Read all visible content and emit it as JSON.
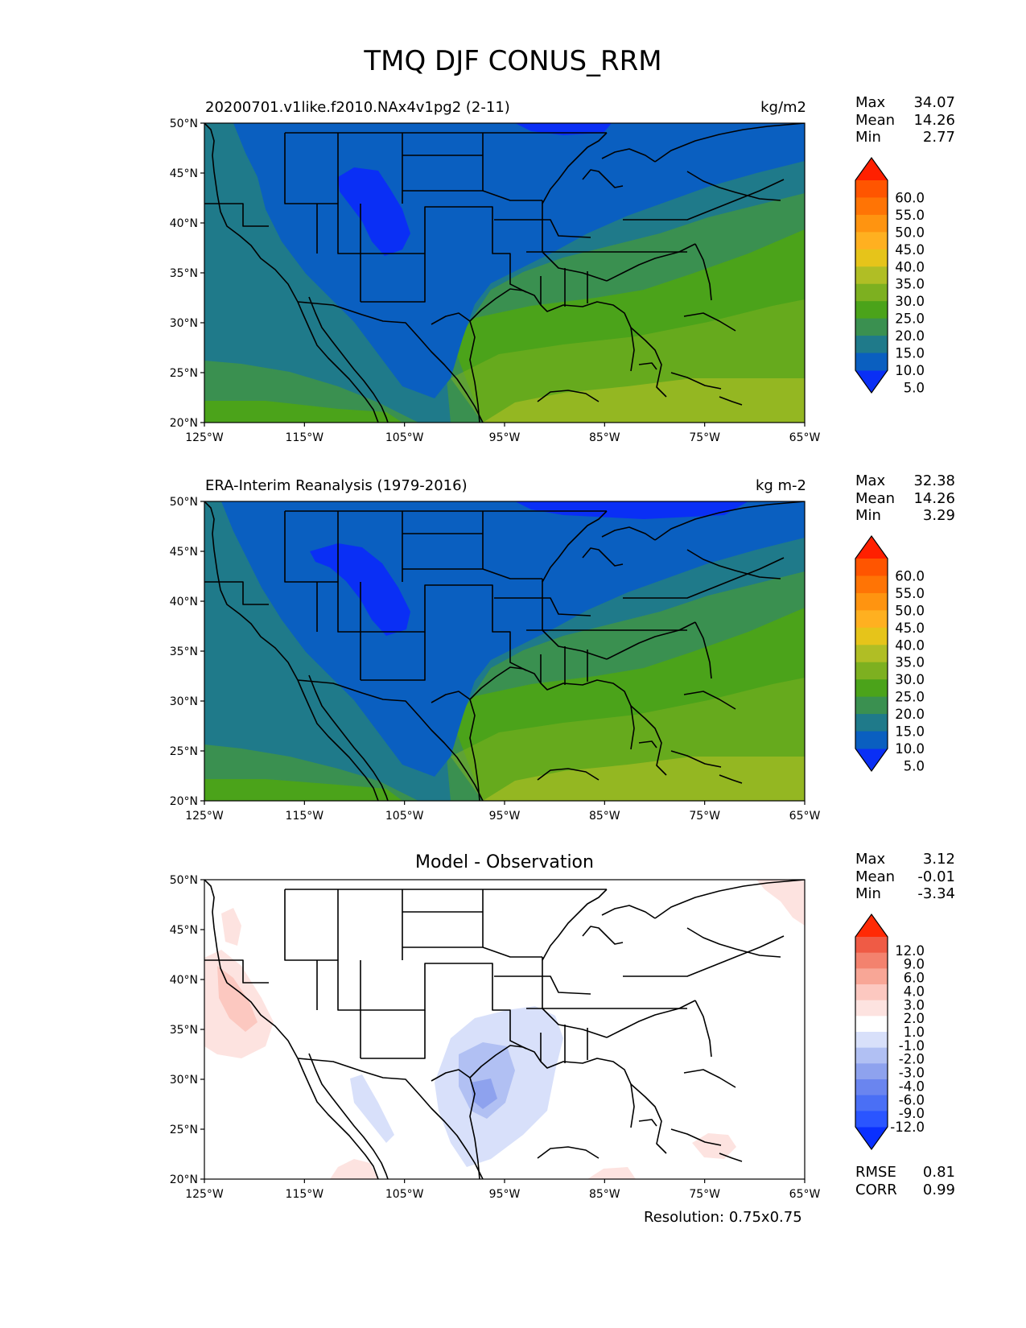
{
  "figure": {
    "title": "TMQ DJF CONUS_RRM",
    "resolution": "Resolution: 0.75x0.75"
  },
  "axes": {
    "lat_ticks": [
      "50°N",
      "45°N",
      "40°N",
      "35°N",
      "30°N",
      "25°N",
      "20°N"
    ],
    "lon_ticks": [
      "125°W",
      "115°W",
      "105°W",
      "95°W",
      "85°W",
      "75°W",
      "65°W"
    ],
    "lat_range": [
      20,
      50
    ],
    "lon_range": [
      -125,
      -65
    ]
  },
  "colors": {
    "field": [
      "#0a2ff5",
      "#0a5fc0",
      "#1f7a8a",
      "#3a9050",
      "#4ba31a",
      "#7db020",
      "#b0be25",
      "#e6c41a",
      "#ffb020",
      "#ff9410",
      "#ff7405",
      "#ff5500",
      "#ff2000"
    ],
    "diff": [
      "#0a30ff",
      "#2a55ff",
      "#4a6ff5",
      "#6a85ef",
      "#8ea2ee",
      "#b1c0f3",
      "#d8e0fa",
      "#ffffff",
      "#fde3e0",
      "#fcc8c0",
      "#f8a696",
      "#f3826e",
      "#ef5b45",
      "#ff2a05"
    ]
  },
  "panels": [
    {
      "id": "model",
      "left_title": "20200701.v1like.f2010.NAx4v1pg2 (2-11)",
      "right_title": "kg/m2",
      "stats": [
        [
          "Max",
          "34.07"
        ],
        [
          "Mean",
          "14.26"
        ],
        [
          "Min",
          "2.77"
        ]
      ],
      "colorbar_labels": [
        "60.0",
        "55.0",
        "50.0",
        "45.0",
        "40.0",
        "35.0",
        "30.0",
        "25.0",
        "20.0",
        "15.0",
        "10.0",
        "5.0"
      ]
    },
    {
      "id": "obs",
      "left_title": "ERA-Interim Reanalysis (1979-2016)",
      "right_title": "kg m-2",
      "stats": [
        [
          "Max",
          "32.38"
        ],
        [
          "Mean",
          "14.26"
        ],
        [
          "Min",
          "3.29"
        ]
      ],
      "colorbar_labels": [
        "60.0",
        "55.0",
        "50.0",
        "45.0",
        "40.0",
        "35.0",
        "30.0",
        "25.0",
        "20.0",
        "15.0",
        "10.0",
        "5.0"
      ]
    },
    {
      "id": "diff",
      "center_title": "Model - Observation",
      "stats": [
        [
          "Max",
          "3.12"
        ],
        [
          "Mean",
          "-0.01"
        ],
        [
          "Min",
          "-3.34"
        ]
      ],
      "colorbar_labels": [
        "12.0",
        "9.0",
        "6.0",
        "4.0",
        "3.0",
        "2.0",
        "1.0",
        "-1.0",
        "-2.0",
        "-3.0",
        "-4.0",
        "-6.0",
        "-9.0",
        "-12.0"
      ],
      "metrics": [
        [
          "RMSE",
          "0.81"
        ],
        [
          "CORR",
          "0.99"
        ]
      ]
    }
  ]
}
